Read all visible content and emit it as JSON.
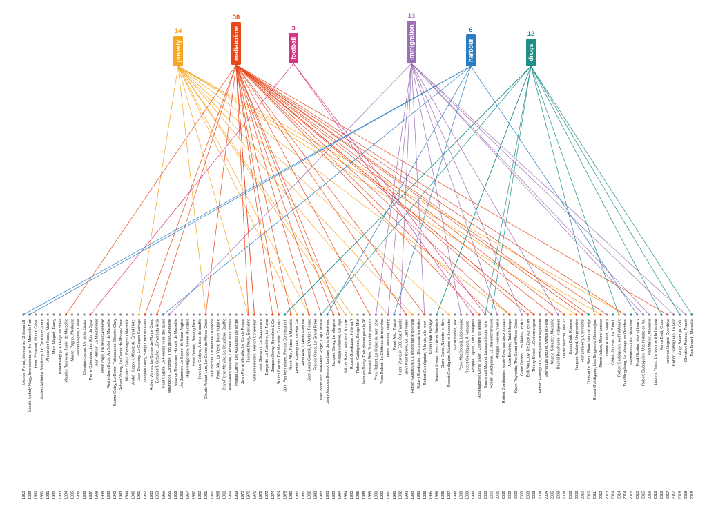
{
  "tags": [
    {
      "id": "poverty",
      "label": "poverty",
      "count": "14",
      "color": "#f5a623"
    },
    {
      "id": "mafia",
      "label": "mafia/crime",
      "count": "30",
      "color": "#e8481c"
    },
    {
      "id": "football",
      "label": "football",
      "count": "3",
      "color": "#d63384"
    },
    {
      "id": "immigration",
      "label": "immigration",
      "count": "13",
      "color": "#9b6fb5"
    },
    {
      "id": "harbour",
      "label": "harbour",
      "count": "6",
      "color": "#2b7cc1"
    },
    {
      "id": "drugs",
      "label": "drugs",
      "count": "12",
      "color": "#1f8f8a"
    }
  ],
  "films": [
    {
      "label": "Léonce Perret, Léonce au Château d'If",
      "year": "1913",
      "tag": "harbour"
    },
    {
      "label": "László Moholy-Nagy, Impressions of the Marseille Port",
      "year": "1929",
      "tag": "harbour"
    },
    {
      "label": "Henri Fescourt, Monte Cristo",
      "year": "1930",
      "tag": ""
    },
    {
      "label": "Anders Wilhelm Sandberg, Le Capitaine Jaune",
      "year": "1930",
      "tag": ""
    },
    {
      "label": "Alexander Korda, Marius",
      "year": "1931",
      "tag": ""
    },
    {
      "label": "Marc Allégret, Fanny",
      "year": "1932",
      "tag": ""
    },
    {
      "label": "Robert Péguy, Au Pays du Soleil",
      "year": "1933",
      "tag": ""
    },
    {
      "label": "Maurice Tourneur, Justin de Marseille",
      "year": "1934",
      "tag": "mafia"
    },
    {
      "label": "Marcel Pagnol, Merlusse",
      "year": "1935",
      "tag": ""
    },
    {
      "label": "Marcel Pagnol, César",
      "year": "1936",
      "tag": ""
    },
    {
      "label": "Christian-Jaque, Un de la Légion",
      "year": "1936",
      "tag": ""
    },
    {
      "label": "Pierre Colombier, Les Rois du Sport",
      "year": "1937",
      "tag": "football"
    },
    {
      "label": "Jean Renoir, La Marseillaise",
      "year": "1938",
      "tag": ""
    },
    {
      "label": "René Pujol, Un de la Canebière",
      "year": "1938",
      "tag": ""
    },
    {
      "label": "Pierre-Jean Ducis, Au Soleil de Marseille",
      "year": "1938",
      "tag": ""
    },
    {
      "label": "Sacha Guitry, Le Destin Fabuleux de Désirée Clary",
      "year": "1942",
      "tag": ""
    },
    {
      "label": "Robert Vernay, Le Comte de Monte-Cristo",
      "year": "1943",
      "tag": ""
    },
    {
      "label": "Michael Curtiz, Passage to Marseille",
      "year": "1944",
      "tag": ""
    },
    {
      "label": "André Hugon, L'Affaire du Grand Hôtel",
      "year": "1946",
      "tag": ""
    },
    {
      "label": "Jean Delannoy, Le Garçon Sauvage",
      "year": "1951",
      "tag": "poverty"
    },
    {
      "label": "Jacques Daroy, Sergil Chez les Filles",
      "year": "1952",
      "tag": "mafia"
    },
    {
      "label": "Robert Vernay, Le Comte de Monte Cristo",
      "year": "1953",
      "tag": ""
    },
    {
      "label": "Edmond T. Gréville, L'Envers du désir",
      "year": "1953",
      "tag": "mafia"
    },
    {
      "label": "Paul Carpita, Le Rendez-vous des quais",
      "year": "1955",
      "tag": "harbour"
    },
    {
      "label": "Maurice de Canonge, Trois de la Canebière",
      "year": "1955",
      "tag": "immigration"
    },
    {
      "label": "Maurice Regamey, Honoré de Marseille",
      "year": "1956",
      "tag": ""
    },
    {
      "label": "Léo Joannon, Le Secret de Sœur Angèle",
      "year": "1956",
      "tag": ""
    },
    {
      "label": "Hugo Fregonese, Seven Thunders",
      "year": "1957",
      "tag": ""
    },
    {
      "label": "Henri Decoin, Burning Fuse",
      "year": "1957",
      "tag": ""
    },
    {
      "label": "Jean-Luc Godard, À bout de souffle",
      "year": "1960",
      "tag": ""
    },
    {
      "label": "Claude Autant-Lara, Le Comte de Monte Cristo",
      "year": "1961",
      "tag": "mafia"
    },
    {
      "label": "Jean Becker, Un nommé La Rocca",
      "year": "1961",
      "tag": ""
    },
    {
      "label": "René Allio, La Vieille Dame indigne",
      "year": "1965",
      "tag": ""
    },
    {
      "label": "Jean-Pierre Melville, Le Deuxième Souffle",
      "year": "1966",
      "tag": ""
    },
    {
      "label": "Jean-Pierre Melville, L'Armée des Ombres",
      "year": "1969",
      "tag": ""
    },
    {
      "label": "Marcel Carné, Les Assassins de l'ordre",
      "year": "1969",
      "tag": ""
    },
    {
      "label": "Jean-Pierre Melville, Le Cercle Rouge",
      "year": "1970",
      "tag": ""
    },
    {
      "label": "Jacques Deray, Borsalino",
      "year": "1970",
      "tag": "mafia"
    },
    {
      "label": "William Friedkin, French Connection",
      "year": "1971",
      "tag": "mafia"
    },
    {
      "label": "José Giovanni, La Scoumoune",
      "year": "1972",
      "tag": ""
    },
    {
      "label": "Denys de La Patellière, Le Tueur",
      "year": "1972",
      "tag": ""
    },
    {
      "label": "Jacques Deray, Borsalino & Co",
      "year": "1974",
      "tag": "mafia"
    },
    {
      "label": "Robert Parrish, The Marseille Contract",
      "year": "1974",
      "tag": "mafia"
    },
    {
      "label": "John Frankenheimer, French Connection II",
      "year": "1975",
      "tag": "drugs"
    },
    {
      "label": "René Allio, Retour à Marseille",
      "year": "1980",
      "tag": "mafia"
    },
    {
      "label": "Robert Guédiguian, Dernier Été",
      "year": "1981",
      "tag": "poverty"
    },
    {
      "label": "René Allio, L'Heure Exquise",
      "year": "1981",
      "tag": ""
    },
    {
      "label": "Jean-Louis Comolli, L'Ombre Rouge",
      "year": "1982",
      "tag": "mafia"
    },
    {
      "label": "Francis Girod, La Grand Frère",
      "year": "1982",
      "tag": ""
    },
    {
      "label": "Juliet Berto and Jean-Henri Roger, Cap Canaille",
      "year": "1983",
      "tag": "drugs"
    },
    {
      "label": "Jean-Jacques Beineix, La Lune dans le Caniveau",
      "year": "1983",
      "tag": "harbour"
    },
    {
      "label": "Jacques Deray, Le Marginal",
      "year": "1983",
      "tag": "mafia"
    },
    {
      "label": "Philippe Lefebvre, Le Juge",
      "year": "1984",
      "tag": "mafia"
    },
    {
      "label": "Michel Blanc, Marche à l'ombre",
      "year": "1984",
      "tag": "poverty"
    },
    {
      "label": "Robert Guédiguian, Ki lo sa ?",
      "year": "1985",
      "tag": "poverty"
    },
    {
      "label": "Robert Guédiguian, Rouge Midi",
      "year": "1985",
      "tag": ""
    },
    {
      "label": "Jacques Demy, Trois places pour le 26",
      "year": "1988",
      "tag": ""
    },
    {
      "label": "Bernard Blier, Trop belle pour toi",
      "year": "1989",
      "tag": ""
    },
    {
      "label": "Yves Robert, La Gloire de mon père",
      "year": "1990",
      "tag": "immigration"
    },
    {
      "label": "Yves Robert, Le Château de ma mère",
      "year": "1990",
      "tag": ""
    },
    {
      "label": "Henri Verneuil, Mayrig",
      "year": "1991",
      "tag": "immigration"
    },
    {
      "label": "René Allio, Transit",
      "year": "1991",
      "tag": "harbour"
    },
    {
      "label": "Henri Verneuil, 588, Rue Paradis",
      "year": "1992",
      "tag": "immigration"
    },
    {
      "label": "Jean-Paul Rouve, Le Cerf-volant",
      "year": "1992",
      "tag": "mafia"
    },
    {
      "label": "Robert Guédiguian, L'argent fait le bonheur",
      "year": "1993",
      "tag": "poverty"
    },
    {
      "label": "Robert Guédiguian, Dieu vomit les tièdes",
      "year": "1993",
      "tag": ""
    },
    {
      "label": "Robert Guédiguian, À la vie, à la mort !",
      "year": "1995",
      "tag": "mafia"
    },
    {
      "label": "Karim Dridi, Bye-bye",
      "year": "1995",
      "tag": ""
    },
    {
      "label": "Jeannot Szwarc, Hercule et Sherlock",
      "year": "1996",
      "tag": "drugs"
    },
    {
      "label": "Claire Denis, Nénette et Boni",
      "year": "1996",
      "tag": ""
    },
    {
      "label": "Robert Guédiguian, Marius et Jeannette",
      "year": "1997",
      "tag": "poverty"
    },
    {
      "label": "Gérard Pirès, Taxi",
      "year": "1998",
      "tag": ""
    },
    {
      "label": "Peter MacDonald, Légionnaire",
      "year": "1998",
      "tag": "immigration"
    },
    {
      "label": "Robert Guédiguian, À l'attaque !",
      "year": "1999",
      "tag": ""
    },
    {
      "label": "Philippe Dajoux, Les Collègues",
      "year": "1999",
      "tag": "football"
    },
    {
      "label": "Akhenaton et Kamel Saleh, Comme un aimant",
      "year": "2000",
      "tag": "mafia"
    },
    {
      "label": "Emmanuel Mouret, Laissons Lucie faire !",
      "year": "2000",
      "tag": "drugs"
    },
    {
      "label": "Robert Guédiguian, La ville est tranquille",
      "year": "2000",
      "tag": "drugs"
    },
    {
      "label": "Philippe Faucon, Samia",
      "year": "2001",
      "tag": "immigration"
    },
    {
      "label": "Robert Guédiguian, Marie-Jo et ses deux amours",
      "year": "2002",
      "tag": ""
    },
    {
      "label": "Alain Bévérini, Total Khéops",
      "year": "2002",
      "tag": "mafia"
    },
    {
      "label": "Kevin Reynolds, The Count of Monte Cristo",
      "year": "2002",
      "tag": ""
    },
    {
      "label": "Claire Devers, Les Marins perdus",
      "year": "2003",
      "tag": "immigration"
    },
    {
      "label": "Erik Van Looy, De Zaak Alzheimer",
      "year": "2003",
      "tag": "mafia"
    },
    {
      "label": "Thierry Binisti, L'Outremangeur",
      "year": "2003",
      "tag": "mafia"
    },
    {
      "label": "Robert Guédiguian, Mon père est ingénieur",
      "year": "2004",
      "tag": ""
    },
    {
      "label": "Emmanuel Mouret, Vénus et Fleur",
      "year": "2004",
      "tag": ""
    },
    {
      "label": "Angelo Schuster, Marseille",
      "year": "2005",
      "tag": "mafia"
    },
    {
      "label": "Rachid Bouchareb, Indigènes",
      "year": "2006",
      "tag": "immigration"
    },
    {
      "label": "Olivier Marchal, MR 73",
      "year": "2008",
      "tag": "mafia"
    },
    {
      "label": "Karim Dridi, Khamsa",
      "year": "2008",
      "tag": "poverty"
    },
    {
      "label": "Jacques Audiard, Un prophète",
      "year": "2009",
      "tag": "mafia"
    },
    {
      "label": "Richard Berry, L'Immortel",
      "year": "2010",
      "tag": "mafia"
    },
    {
      "label": "Christophe Blanc, Blanc comme neige",
      "year": "2010",
      "tag": "drugs"
    },
    {
      "label": "Robert Guédiguian, Les Neiges du Kilimandjaro",
      "year": "2011",
      "tag": "poverty"
    },
    {
      "label": "Pierre Jolivet, Mains armées",
      "year": "2012",
      "tag": "mafia"
    },
    {
      "label": "Daniel Auteuil, Marius",
      "year": "2013",
      "tag": ""
    },
    {
      "label": "Cédric Jimenez, La French",
      "year": "2014",
      "tag": "drugs"
    },
    {
      "label": "Robert Guédiguian, Au fil d'Ariane",
      "year": "2014",
      "tag": "poverty"
    },
    {
      "label": "Tsai Ming-liang, Le Voyage en Occident",
      "year": "2014",
      "tag": ""
    },
    {
      "label": "Stéphane Giusti, Bella ciao",
      "year": "2015",
      "tag": "harbour"
    },
    {
      "label": "Fred Nicolas, Max et Lenny",
      "year": "2015",
      "tag": "immigration"
    },
    {
      "label": "Robert Guédiguian, Une histoire de fou",
      "year": "2015",
      "tag": "immigration"
    },
    {
      "label": "Kad Merad, Marseille",
      "year": "2016",
      "tag": ""
    },
    {
      "label": "Laurent Tirard, Un homme à la hauteur",
      "year": "2016",
      "tag": ""
    },
    {
      "label": "Karim Dridi, Chouf",
      "year": "2016",
      "tag": "drugs"
    },
    {
      "label": "Antonio Negret, Overdrive",
      "year": "2017",
      "tag": "mafia"
    },
    {
      "label": "Robert Guédiguian, La Villa",
      "year": "2017",
      "tag": "immigration"
    },
    {
      "label": "Ange Basterga, Caïd",
      "year": "2018",
      "tag": "drugs"
    },
    {
      "label": "Christian Petzold, Transit",
      "year": "2018",
      "tag": "immigration"
    },
    {
      "label": "Dan Franck, Marseille",
      "year": "2018",
      "tag": "drugs"
    }
  ],
  "links": {
    "poverty": [
      19,
      45,
      53,
      54,
      64,
      70,
      91,
      95,
      99,
      30,
      37,
      47,
      60,
      80
    ],
    "mafia": [
      7,
      20,
      22,
      30,
      37,
      38,
      41,
      42,
      44,
      47,
      51,
      52,
      63,
      66,
      75,
      80,
      83,
      84,
      87,
      89,
      92,
      93,
      96,
      106,
      38,
      49,
      57,
      77,
      84,
      99
    ],
    "football": [
      11,
      74,
      76
    ],
    "immigration": [
      24,
      58,
      60,
      62,
      72,
      78,
      82,
      88,
      102,
      103,
      107,
      109,
      66
    ],
    "harbour": [
      0,
      1,
      23,
      50,
      61,
      101
    ],
    "drugs": [
      43,
      49,
      68,
      76,
      77,
      94,
      98,
      105,
      108,
      110,
      43,
      68
    ]
  }
}
